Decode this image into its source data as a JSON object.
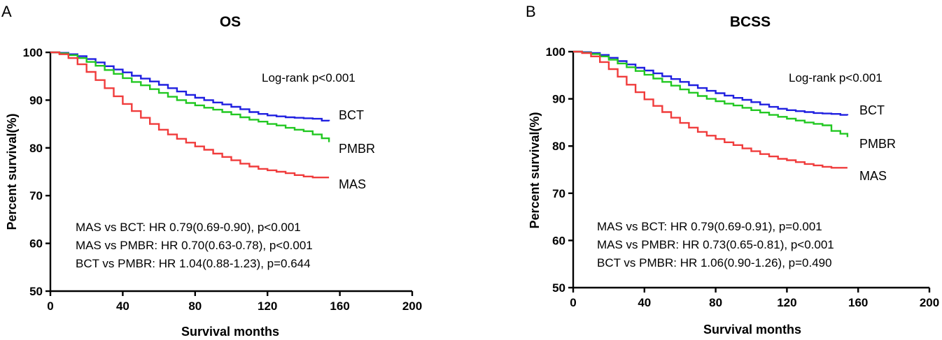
{
  "chart_data": [
    {
      "type": "line",
      "panel_label": "A",
      "title": "OS",
      "xlabel": "Survival months",
      "ylabel": "Percent survival(%)",
      "xlim": [
        0,
        200
      ],
      "ylim": [
        50,
        100
      ],
      "x_ticks": [
        "0",
        "40",
        "80",
        "120",
        "160",
        "200"
      ],
      "y_ticks": [
        "50",
        "60",
        "70",
        "80",
        "90",
        "100"
      ],
      "annotation_top": "Log-rank p<0.001",
      "annotations": [
        "MAS vs BCT: HR 0.79(0.69-0.90), p<0.001",
        "MAS vs PMBR: HR 0.70(0.63-0.78), p<0.001",
        "BCT vs PMBR: HR 1.04(0.88-1.23), p=0.644"
      ],
      "series": [
        {
          "name": "BCT",
          "color": "#1f1fe0",
          "x": [
            0,
            5,
            10,
            15,
            20,
            25,
            30,
            35,
            40,
            45,
            50,
            55,
            60,
            65,
            70,
            75,
            80,
            85,
            90,
            95,
            100,
            105,
            110,
            115,
            120,
            125,
            130,
            135,
            140,
            145,
            150,
            154
          ],
          "y": [
            100,
            99.9,
            99.6,
            99.2,
            98.6,
            97.9,
            97.1,
            96.4,
            95.8,
            95.1,
            94.5,
            93.9,
            93.2,
            92.5,
            91.8,
            91.1,
            90.5,
            90.0,
            89.5,
            89.1,
            88.6,
            88.1,
            87.5,
            87.1,
            86.8,
            86.6,
            86.4,
            86.3,
            86.2,
            86.1,
            85.7,
            85.6
          ]
        },
        {
          "name": "PMBR",
          "color": "#22c822",
          "x": [
            0,
            5,
            10,
            15,
            20,
            25,
            30,
            35,
            40,
            45,
            50,
            55,
            60,
            65,
            70,
            75,
            80,
            85,
            90,
            95,
            100,
            105,
            110,
            115,
            120,
            125,
            130,
            135,
            140,
            145,
            150,
            154
          ],
          "y": [
            100,
            99.8,
            99.4,
            98.8,
            98.0,
            97.2,
            96.3,
            95.5,
            94.6,
            93.8,
            93.1,
            92.3,
            91.5,
            90.7,
            90.0,
            89.4,
            88.9,
            88.4,
            88.0,
            87.5,
            87.0,
            86.4,
            85.9,
            85.5,
            85.0,
            84.7,
            84.2,
            83.8,
            83.5,
            82.8,
            82.0,
            81.2
          ]
        },
        {
          "name": "MAS",
          "color": "#f03c3c",
          "x": [
            0,
            5,
            10,
            15,
            20,
            25,
            30,
            35,
            40,
            45,
            50,
            55,
            60,
            65,
            70,
            75,
            80,
            85,
            90,
            95,
            100,
            105,
            110,
            115,
            120,
            125,
            130,
            135,
            140,
            145,
            150,
            154
          ],
          "y": [
            100,
            99.6,
            98.8,
            97.5,
            95.9,
            94.2,
            92.5,
            90.8,
            89.2,
            87.7,
            86.3,
            85.0,
            83.8,
            82.8,
            81.9,
            81.1,
            80.3,
            79.6,
            78.8,
            78.1,
            77.4,
            76.7,
            76.1,
            75.6,
            75.3,
            75.0,
            74.7,
            74.3,
            74.0,
            73.8,
            73.8,
            73.8
          ]
        }
      ]
    },
    {
      "type": "line",
      "panel_label": "B",
      "title": "BCSS",
      "xlabel": "Survival months",
      "ylabel": "Percent survival(%)",
      "xlim": [
        0,
        200
      ],
      "ylim": [
        50,
        100
      ],
      "x_ticks": [
        "0",
        "40",
        "80",
        "120",
        "160",
        "200"
      ],
      "y_ticks": [
        "50",
        "60",
        "70",
        "80",
        "90",
        "100"
      ],
      "annotation_top": "Log-rank p<0.001",
      "annotations": [
        "MAS vs BCT: HR 0.79(0.69-0.91), p=0.001",
        "MAS vs PMBR: HR 0.73(0.65-0.81), p<0.001",
        "BCT vs PMBR: HR 1.06(0.90-1.26), p=0.490"
      ],
      "series": [
        {
          "name": "BCT",
          "color": "#1f1fe0",
          "x": [
            0,
            5,
            10,
            15,
            20,
            25,
            30,
            35,
            40,
            45,
            50,
            55,
            60,
            65,
            70,
            75,
            80,
            85,
            90,
            95,
            100,
            105,
            110,
            115,
            120,
            125,
            130,
            135,
            140,
            145,
            150,
            154
          ],
          "y": [
            100,
            99.9,
            99.7,
            99.3,
            98.7,
            98.0,
            97.3,
            96.6,
            96.0,
            95.4,
            94.8,
            94.2,
            93.6,
            92.9,
            92.3,
            91.7,
            91.2,
            90.7,
            90.2,
            89.8,
            89.3,
            88.8,
            88.3,
            87.9,
            87.6,
            87.4,
            87.2,
            87.0,
            86.9,
            86.8,
            86.6,
            86.5
          ]
        },
        {
          "name": "PMBR",
          "color": "#22c822",
          "x": [
            0,
            5,
            10,
            15,
            20,
            25,
            30,
            35,
            40,
            45,
            50,
            55,
            60,
            65,
            70,
            75,
            80,
            85,
            90,
            95,
            100,
            105,
            110,
            115,
            120,
            125,
            130,
            135,
            140,
            145,
            150,
            154
          ],
          "y": [
            100,
            99.8,
            99.5,
            99.0,
            98.3,
            97.5,
            96.7,
            95.9,
            95.1,
            94.3,
            93.6,
            92.8,
            92.0,
            91.3,
            90.6,
            90.0,
            89.5,
            89.0,
            88.6,
            88.1,
            87.6,
            87.1,
            86.6,
            86.2,
            85.8,
            85.4,
            85.0,
            84.7,
            84.4,
            83.2,
            82.6,
            81.9
          ]
        },
        {
          "name": "MAS",
          "color": "#f03c3c",
          "x": [
            0,
            5,
            10,
            15,
            20,
            25,
            30,
            35,
            40,
            45,
            50,
            55,
            60,
            65,
            70,
            75,
            80,
            85,
            90,
            95,
            100,
            105,
            110,
            115,
            120,
            125,
            130,
            135,
            140,
            145,
            150,
            154
          ],
          "y": [
            100,
            99.7,
            99.0,
            97.8,
            96.3,
            94.7,
            93.0,
            91.4,
            89.9,
            88.5,
            87.2,
            86.0,
            84.9,
            83.9,
            83.0,
            82.2,
            81.5,
            80.8,
            80.2,
            79.5,
            78.9,
            78.3,
            77.8,
            77.3,
            77.0,
            76.6,
            76.2,
            75.9,
            75.6,
            75.4,
            75.4,
            75.4
          ]
        }
      ]
    }
  ]
}
